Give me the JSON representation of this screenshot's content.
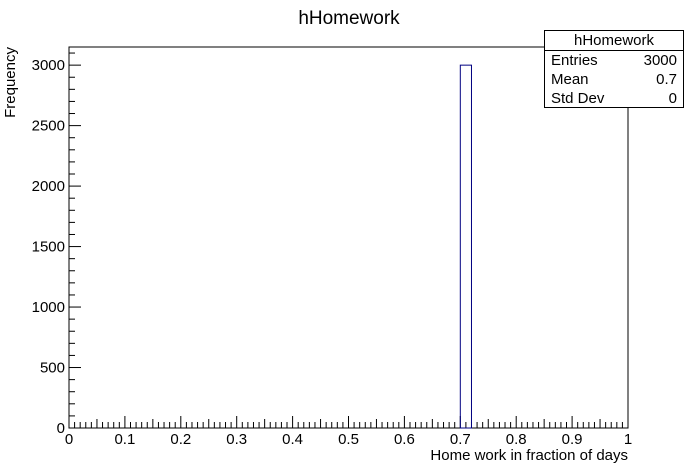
{
  "chart_data": {
    "type": "bar",
    "title": "hHomework",
    "xlabel": "Home work in fraction of days",
    "ylabel": "Frequency",
    "xlim": [
      0,
      1
    ],
    "ylim": [
      0,
      3150
    ],
    "bin_width": 0.02,
    "bins": [
      {
        "x_low": 0.7,
        "x_high": 0.72,
        "count": 3000
      }
    ],
    "x_ticks": [
      "0",
      "0.1",
      "0.2",
      "0.3",
      "0.4",
      "0.5",
      "0.6",
      "0.7",
      "0.8",
      "0.9",
      "1"
    ],
    "y_ticks": [
      "0",
      "500",
      "1000",
      "1500",
      "2000",
      "2500",
      "3000"
    ],
    "bar_color": "#000080",
    "grid": false,
    "legend": "none"
  },
  "stats": {
    "title": "hHomework",
    "rows": [
      {
        "label": "Entries",
        "value": "3000"
      },
      {
        "label": "Mean",
        "value": "0.7"
      },
      {
        "label": "Std Dev",
        "value": "0"
      }
    ]
  }
}
